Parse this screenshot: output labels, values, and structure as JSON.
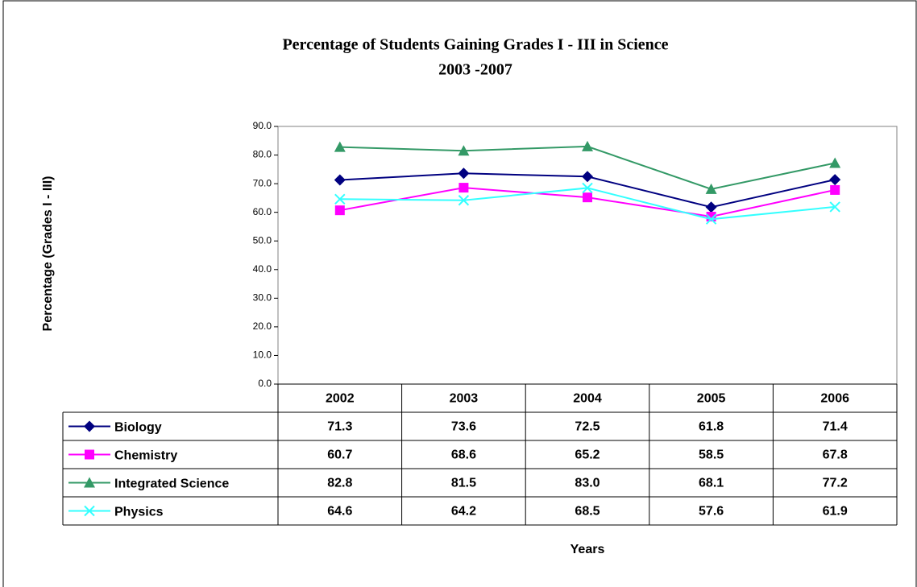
{
  "chart_data": {
    "type": "line",
    "title": "Percentage of Students Gaining Grades I - III in Science",
    "subtitle": "2003 -2007",
    "y_label": "Percentage  (Grades I - III)",
    "x_label": "Years",
    "categories": [
      "2002",
      "2003",
      "2004",
      "2005",
      "2006"
    ],
    "ylim": [
      0,
      90
    ],
    "yticks": [
      {
        "value": 0,
        "label": "0.0"
      },
      {
        "value": 10,
        "label": "10.0"
      },
      {
        "value": 20,
        "label": "20.0"
      },
      {
        "value": 30,
        "label": "30.0"
      },
      {
        "value": 40,
        "label": "40.0"
      },
      {
        "value": 50,
        "label": "50.0"
      },
      {
        "value": 60,
        "label": "60.0"
      },
      {
        "value": 70,
        "label": "70.0"
      },
      {
        "value": 80,
        "label": "80.0"
      },
      {
        "value": 90,
        "label": "90.0"
      }
    ],
    "series": [
      {
        "name": "Biology",
        "color": "#000080",
        "marker": "diamond",
        "values": [
          71.3,
          73.6,
          72.5,
          61.8,
          71.4
        ],
        "value_labels": [
          "71.3",
          "73.6",
          "72.5",
          "61.8",
          "71.4"
        ]
      },
      {
        "name": "Chemistry",
        "color": "#ff00ff",
        "marker": "square",
        "values": [
          60.7,
          68.6,
          65.2,
          58.5,
          67.8
        ],
        "value_labels": [
          "60.7",
          "68.6",
          "65.2",
          "58.5",
          "67.8"
        ]
      },
      {
        "name": "Integrated Science",
        "color": "#339966",
        "marker": "triangle",
        "values": [
          82.8,
          81.5,
          83.0,
          68.1,
          77.2
        ],
        "value_labels": [
          "82.8",
          "81.5",
          "83.0",
          "68.1",
          "77.2"
        ]
      },
      {
        "name": "Physics",
        "color": "#33ffff",
        "marker": "x",
        "values": [
          64.6,
          64.2,
          68.5,
          57.6,
          61.9
        ],
        "value_labels": [
          "64.6",
          "64.2",
          "68.5",
          "57.6",
          "61.9"
        ]
      }
    ]
  }
}
